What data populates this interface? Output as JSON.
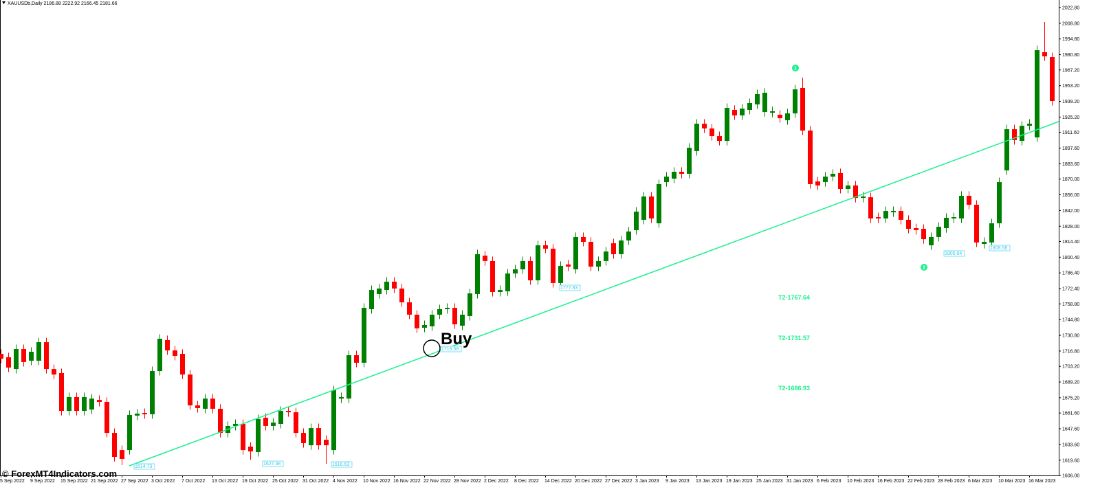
{
  "chart_data": {
    "type": "candlestick",
    "title": "XAUUSDb,Daily  2186.88 2222.92 2166.45 2181.66",
    "up_color": "#008000",
    "down_color": "#ff0000",
    "ylim": [
      1606,
      2029.5
    ],
    "yticks": [
      {
        "value": 1606,
        "label": "1606.00"
      },
      {
        "value": 1619.6,
        "label": "1619.60"
      },
      {
        "value": 1633.6,
        "label": "1633.60"
      },
      {
        "value": 1647.6,
        "label": "1647.60"
      },
      {
        "value": 1661.6,
        "label": "1661.60"
      },
      {
        "value": 1675.2,
        "label": "1675.20"
      },
      {
        "value": 1689.2,
        "label": "1689.20"
      },
      {
        "value": 1703.2,
        "label": "1703.20"
      },
      {
        "value": 1716.8,
        "label": "1716.80"
      },
      {
        "value": 1730.8,
        "label": "1730.80"
      },
      {
        "value": 1744.8,
        "label": "1744.80"
      },
      {
        "value": 1758.8,
        "label": "1758.80"
      },
      {
        "value": 1772.4,
        "label": "1772.40"
      },
      {
        "value": 1786.4,
        "label": "1786.40"
      },
      {
        "value": 1800.4,
        "label": "1800.40"
      },
      {
        "value": 1814.4,
        "label": "1814.40"
      },
      {
        "value": 1828,
        "label": "1828.00"
      },
      {
        "value": 1842,
        "label": "1842.00"
      },
      {
        "value": 1856,
        "label": "1856.00"
      },
      {
        "value": 1870,
        "label": "1870.00"
      },
      {
        "value": 1883.6,
        "label": "1883.60"
      },
      {
        "value": 1897.6,
        "label": "1897.60"
      },
      {
        "value": 1911.6,
        "label": "1911.60"
      },
      {
        "value": 1925.2,
        "label": "1925.20"
      },
      {
        "value": 1939.2,
        "label": "1939.20"
      },
      {
        "value": 1953.2,
        "label": "1953.20"
      },
      {
        "value": 1967.2,
        "label": "1967.20"
      },
      {
        "value": 1980.8,
        "label": "1980.80"
      },
      {
        "value": 1994.8,
        "label": "1994.80"
      },
      {
        "value": 2008.8,
        "label": "2008.80"
      },
      {
        "value": 2022.8,
        "label": "2022.80"
      }
    ],
    "categories": [
      "5 Sep 2022",
      null,
      null,
      null,
      "9 Sep 2022",
      null,
      null,
      null,
      "15 Sep 2022",
      null,
      null,
      null,
      "21 Sep 2022",
      null,
      null,
      null,
      "27 Sep 2022",
      null,
      null,
      null,
      "3 Oct 2022",
      null,
      null,
      null,
      "7 Oct 2022",
      null,
      null,
      null,
      "13 Oct 2022",
      null,
      null,
      null,
      "19 Oct 2022",
      null,
      null,
      null,
      "25 Oct 2022",
      null,
      null,
      null,
      "31 Oct 2022",
      null,
      null,
      null,
      "4 Nov 2022",
      null,
      null,
      null,
      "10 Nov 2022",
      null,
      null,
      null,
      "16 Nov 2022",
      null,
      null,
      null,
      "22 Nov 2022",
      null,
      null,
      null,
      "28 Nov 2022",
      null,
      null,
      null,
      "2 Dec 2022",
      null,
      null,
      null,
      "8 Dec 2022",
      null,
      null,
      null,
      "14 Dec 2022",
      null,
      null,
      null,
      "20 Dec 2022",
      null,
      null,
      null,
      "27 Dec 2022",
      null,
      null,
      null,
      "3 Jan 2023",
      null,
      null,
      null,
      "9 Jan 2023",
      null,
      null,
      null,
      "13 Jan 2023",
      null,
      null,
      null,
      "19 Jan 2023",
      null,
      null,
      null,
      "25 Jan 2023",
      null,
      null,
      null,
      "31 Jan 2023",
      null,
      null,
      null,
      "6 Feb 2023",
      null,
      null,
      null,
      "10 Feb 2023",
      null,
      null,
      null,
      "16 Feb 2023",
      null,
      null,
      null,
      "22 Feb 2023",
      null,
      null,
      null,
      "28 Feb 2023",
      null,
      null,
      null,
      "6 Mar 2023",
      null,
      null,
      null,
      "10 Mar 2023",
      null,
      null,
      null,
      "16 Mar 2023",
      null,
      null,
      null
    ],
    "open": [
      1714.3,
      1711.3,
      1700.8,
      1718.6,
      1708.2,
      1708.2,
      1724.7,
      1700.8,
      1697.2,
      1663.5,
      1675.8,
      1663.5,
      1664.7,
      1673.3,
      1671.5,
      1643.9,
      1628.6,
      1628.6,
      1659.3,
      1661.7,
      1660.5,
      1699.0,
      1726.6,
      1717.4,
      1714.3,
      1695.9,
      1668.4,
      1665.4,
      1674.5,
      1665.4,
      1643.9,
      1650.1,
      1651.9,
      1631.7,
      1626.8,
      1657.4,
      1650.1,
      1651.9,
      1663.5,
      1662.3,
      1643.9,
      1632.9,
      1648.2,
      1637.8,
      1628.6,
      1674.5,
      1674.5,
      1713.1,
      1706.4,
      1754.1,
      1767.6,
      1771.2,
      1778.6,
      1772.5,
      1760.2,
      1749.2,
      1737.6,
      1738.8,
      1749.2,
      1754.1,
      1755.3,
      1739.4,
      1748.0,
      1767.6,
      1801.8,
      1797.0,
      1769.4,
      1770.0,
      1785.9,
      1789.6,
      1797.0,
      1779.8,
      1811.0,
      1808.0,
      1777.4,
      1793.9,
      1789.6,
      1818.4,
      1814.1,
      1792.0,
      1797.0,
      1812.8,
      1803.1,
      1815.3,
      1824.5,
      1833.7,
      1854.5,
      1830.6,
      1867.3,
      1870.4,
      1876.5,
      1874.7,
      1894.9,
      1919.3,
      1915.1,
      1908.3,
      1904.0,
      1931.6,
      1926.7,
      1931.6,
      1936.5,
      1929.7,
      1929.1,
      1927.3,
      1922.4,
      1928.5,
      1951.2,
      1913.2,
      1867.9,
      1867.3,
      1872.2,
      1875.3,
      1861.2,
      1864.3,
      1853.2,
      1853.8,
      1836.1,
      1834.9,
      1840.4,
      1841.6,
      1833.7,
      1826.3,
      1825.7,
      1811.0,
      1818.4,
      1826.3,
      1834.9,
      1834.9,
      1855.1,
      1847.1,
      1812.2,
      1813.5,
      1830.6,
      1877.7,
      1914.4,
      1904.0,
      1917.5,
      1907.1,
      1983.0,
      1978.7
    ],
    "high": [
      1718.3,
      1715.3,
      1722.6,
      1722.6,
      1720.2,
      1728.7,
      1728.7,
      1704.8,
      1701.2,
      1679.8,
      1679.8,
      1679.8,
      1678.5,
      1677.3,
      1675.5,
      1647.9,
      1632.6,
      1663.9,
      1665.1,
      1665.7,
      1703.0,
      1731.8,
      1730.6,
      1721.4,
      1718.3,
      1699.9,
      1672.4,
      1678.5,
      1678.5,
      1669.4,
      1654.1,
      1655.9,
      1655.9,
      1635.7,
      1660.2,
      1661.4,
      1657.1,
      1667.5,
      1667.5,
      1666.3,
      1647.9,
      1652.2,
      1652.2,
      1641.8,
      1685.9,
      1679.8,
      1717.1,
      1717.1,
      1759.3,
      1775.2,
      1776.5,
      1782.6,
      1782.6,
      1776.5,
      1764.2,
      1753.2,
      1744.0,
      1753.2,
      1758.1,
      1759.3,
      1759.3,
      1753.2,
      1772.2,
      1807.1,
      1805.8,
      1801.0,
      1775.2,
      1789.9,
      1793.6,
      1801.0,
      1801.0,
      1815.0,
      1815.0,
      1812.0,
      1796.7,
      1797.9,
      1822.4,
      1822.4,
      1818.1,
      1801.0,
      1809.5,
      1816.8,
      1819.3,
      1827.3,
      1845.0,
      1858.5,
      1858.5,
      1869.5,
      1876.2,
      1880.5,
      1880.5,
      1901.9,
      1923.3,
      1923.3,
      1919.1,
      1912.3,
      1937.4,
      1935.6,
      1936.8,
      1941.7,
      1949.7,
      1950.9,
      1934.4,
      1931.3,
      1932.5,
      1953.9,
      1960.3,
      1917.2,
      1871.9,
      1876.2,
      1878.7,
      1879.3,
      1868.3,
      1868.3,
      1858.5,
      1857.8,
      1840.1,
      1845.6,
      1845.6,
      1845.6,
      1837.7,
      1830.3,
      1829.7,
      1822.4,
      1831.5,
      1839.5,
      1840.1,
      1859.1,
      1859.1,
      1851.1,
      1818.1,
      1834.6,
      1871.3,
      1918.4,
      1918.4,
      1921.5,
      1923.3,
      1988.8,
      2009.9,
      1982.7
    ],
    "low": [
      1706.0,
      1698.1,
      1696.8,
      1703.0,
      1704.2,
      1704.2,
      1696.8,
      1691.9,
      1659.5,
      1659.5,
      1659.5,
      1659.5,
      1660.7,
      1667.5,
      1639.9,
      1618.5,
      1615.2,
      1624.6,
      1655.3,
      1656.5,
      1656.5,
      1695.0,
      1713.4,
      1708.5,
      1691.9,
      1664.4,
      1662.0,
      1661.4,
      1661.4,
      1639.9,
      1639.9,
      1646.1,
      1624.6,
      1620.0,
      1622.8,
      1646.1,
      1646.1,
      1647.9,
      1658.3,
      1639.9,
      1630.8,
      1628.9,
      1628.9,
      1616.4,
      1624.6,
      1670.5,
      1670.5,
      1702.4,
      1702.4,
      1750.1,
      1763.6,
      1767.2,
      1768.5,
      1756.2,
      1745.2,
      1733.0,
      1733.6,
      1734.8,
      1745.2,
      1750.1,
      1736.6,
      1735.4,
      1744.0,
      1763.6,
      1793.0,
      1765.4,
      1765.4,
      1766.0,
      1781.9,
      1785.6,
      1775.8,
      1775.8,
      1804.0,
      1773.4,
      1773.4,
      1788.0,
      1785.6,
      1810.1,
      1788.0,
      1788.0,
      1793.0,
      1799.1,
      1799.1,
      1811.3,
      1820.5,
      1829.7,
      1830.9,
      1826.6,
      1863.3,
      1866.4,
      1870.7,
      1870.7,
      1890.9,
      1911.1,
      1904.3,
      1900.0,
      1900.0,
      1922.7,
      1922.7,
      1927.6,
      1932.5,
      1925.7,
      1925.1,
      1920.2,
      1918.4,
      1924.5,
      1909.2,
      1861.5,
      1860.3,
      1863.3,
      1868.2,
      1857.2,
      1857.2,
      1849.2,
      1849.2,
      1830.9,
      1830.9,
      1830.9,
      1836.4,
      1829.7,
      1821.7,
      1820.5,
      1812.5,
      1807.0,
      1814.4,
      1822.3,
      1830.9,
      1830.9,
      1843.1,
      1809.5,
      1808.2,
      1809.5,
      1826.6,
      1873.7,
      1900.7,
      1900.0,
      1913.5,
      1903.1,
      1975.3,
      1935.5
    ],
    "close": [
      1710.0,
      1702.1,
      1718.6,
      1707.0,
      1716.2,
      1724.7,
      1700.8,
      1695.9,
      1663.5,
      1675.8,
      1663.5,
      1675.8,
      1674.5,
      1671.5,
      1643.9,
      1622.5,
      1620.7,
      1659.9,
      1661.1,
      1660.5,
      1699.0,
      1727.8,
      1717.4,
      1712.5,
      1695.9,
      1668.4,
      1666.0,
      1674.5,
      1665.4,
      1643.9,
      1650.1,
      1651.9,
      1628.6,
      1627.4,
      1656.2,
      1650.1,
      1653.1,
      1663.5,
      1662.3,
      1643.9,
      1634.8,
      1648.2,
      1632.9,
      1632.9,
      1681.9,
      1675.8,
      1713.1,
      1706.4,
      1755.3,
      1771.2,
      1772.5,
      1778.6,
      1772.5,
      1760.2,
      1749.2,
      1737.0,
      1740.0,
      1749.2,
      1754.1,
      1755.3,
      1740.6,
      1749.2,
      1768.2,
      1803.1,
      1797.0,
      1769.4,
      1771.2,
      1785.9,
      1789.6,
      1797.0,
      1779.8,
      1811.0,
      1808.0,
      1777.4,
      1792.7,
      1792.0,
      1818.4,
      1814.1,
      1792.0,
      1797.0,
      1805.5,
      1803.1,
      1815.3,
      1823.3,
      1841.0,
      1854.5,
      1834.9,
      1865.5,
      1872.2,
      1876.5,
      1874.7,
      1897.9,
      1919.3,
      1915.1,
      1908.3,
      1904.0,
      1933.4,
      1926.7,
      1932.8,
      1937.7,
      1945.7,
      1946.9,
      1930.4,
      1924.2,
      1928.5,
      1949.9,
      1913.2,
      1865.5,
      1864.3,
      1872.2,
      1874.7,
      1861.2,
      1864.3,
      1853.2,
      1854.5,
      1834.9,
      1834.9,
      1841.6,
      1841.6,
      1833.7,
      1825.7,
      1824.5,
      1816.5,
      1818.4,
      1827.5,
      1835.5,
      1836.1,
      1855.1,
      1847.1,
      1813.5,
      1814.1,
      1830.6,
      1867.3,
      1914.4,
      1904.7,
      1917.5,
      1919.3,
      1984.8,
      1979.3,
      1939.5
    ],
    "annotations": [
      "Buy",
      "1614.73",
      "1627.38",
      "1616.63",
      "1719.58",
      "1777.83",
      "1805.64",
      "1808.58",
      "1",
      "2",
      "T2-1767.64",
      "T2-1731.57",
      "T2-1686.93",
      "© ForexMT4Indicators.com"
    ]
  }
}
